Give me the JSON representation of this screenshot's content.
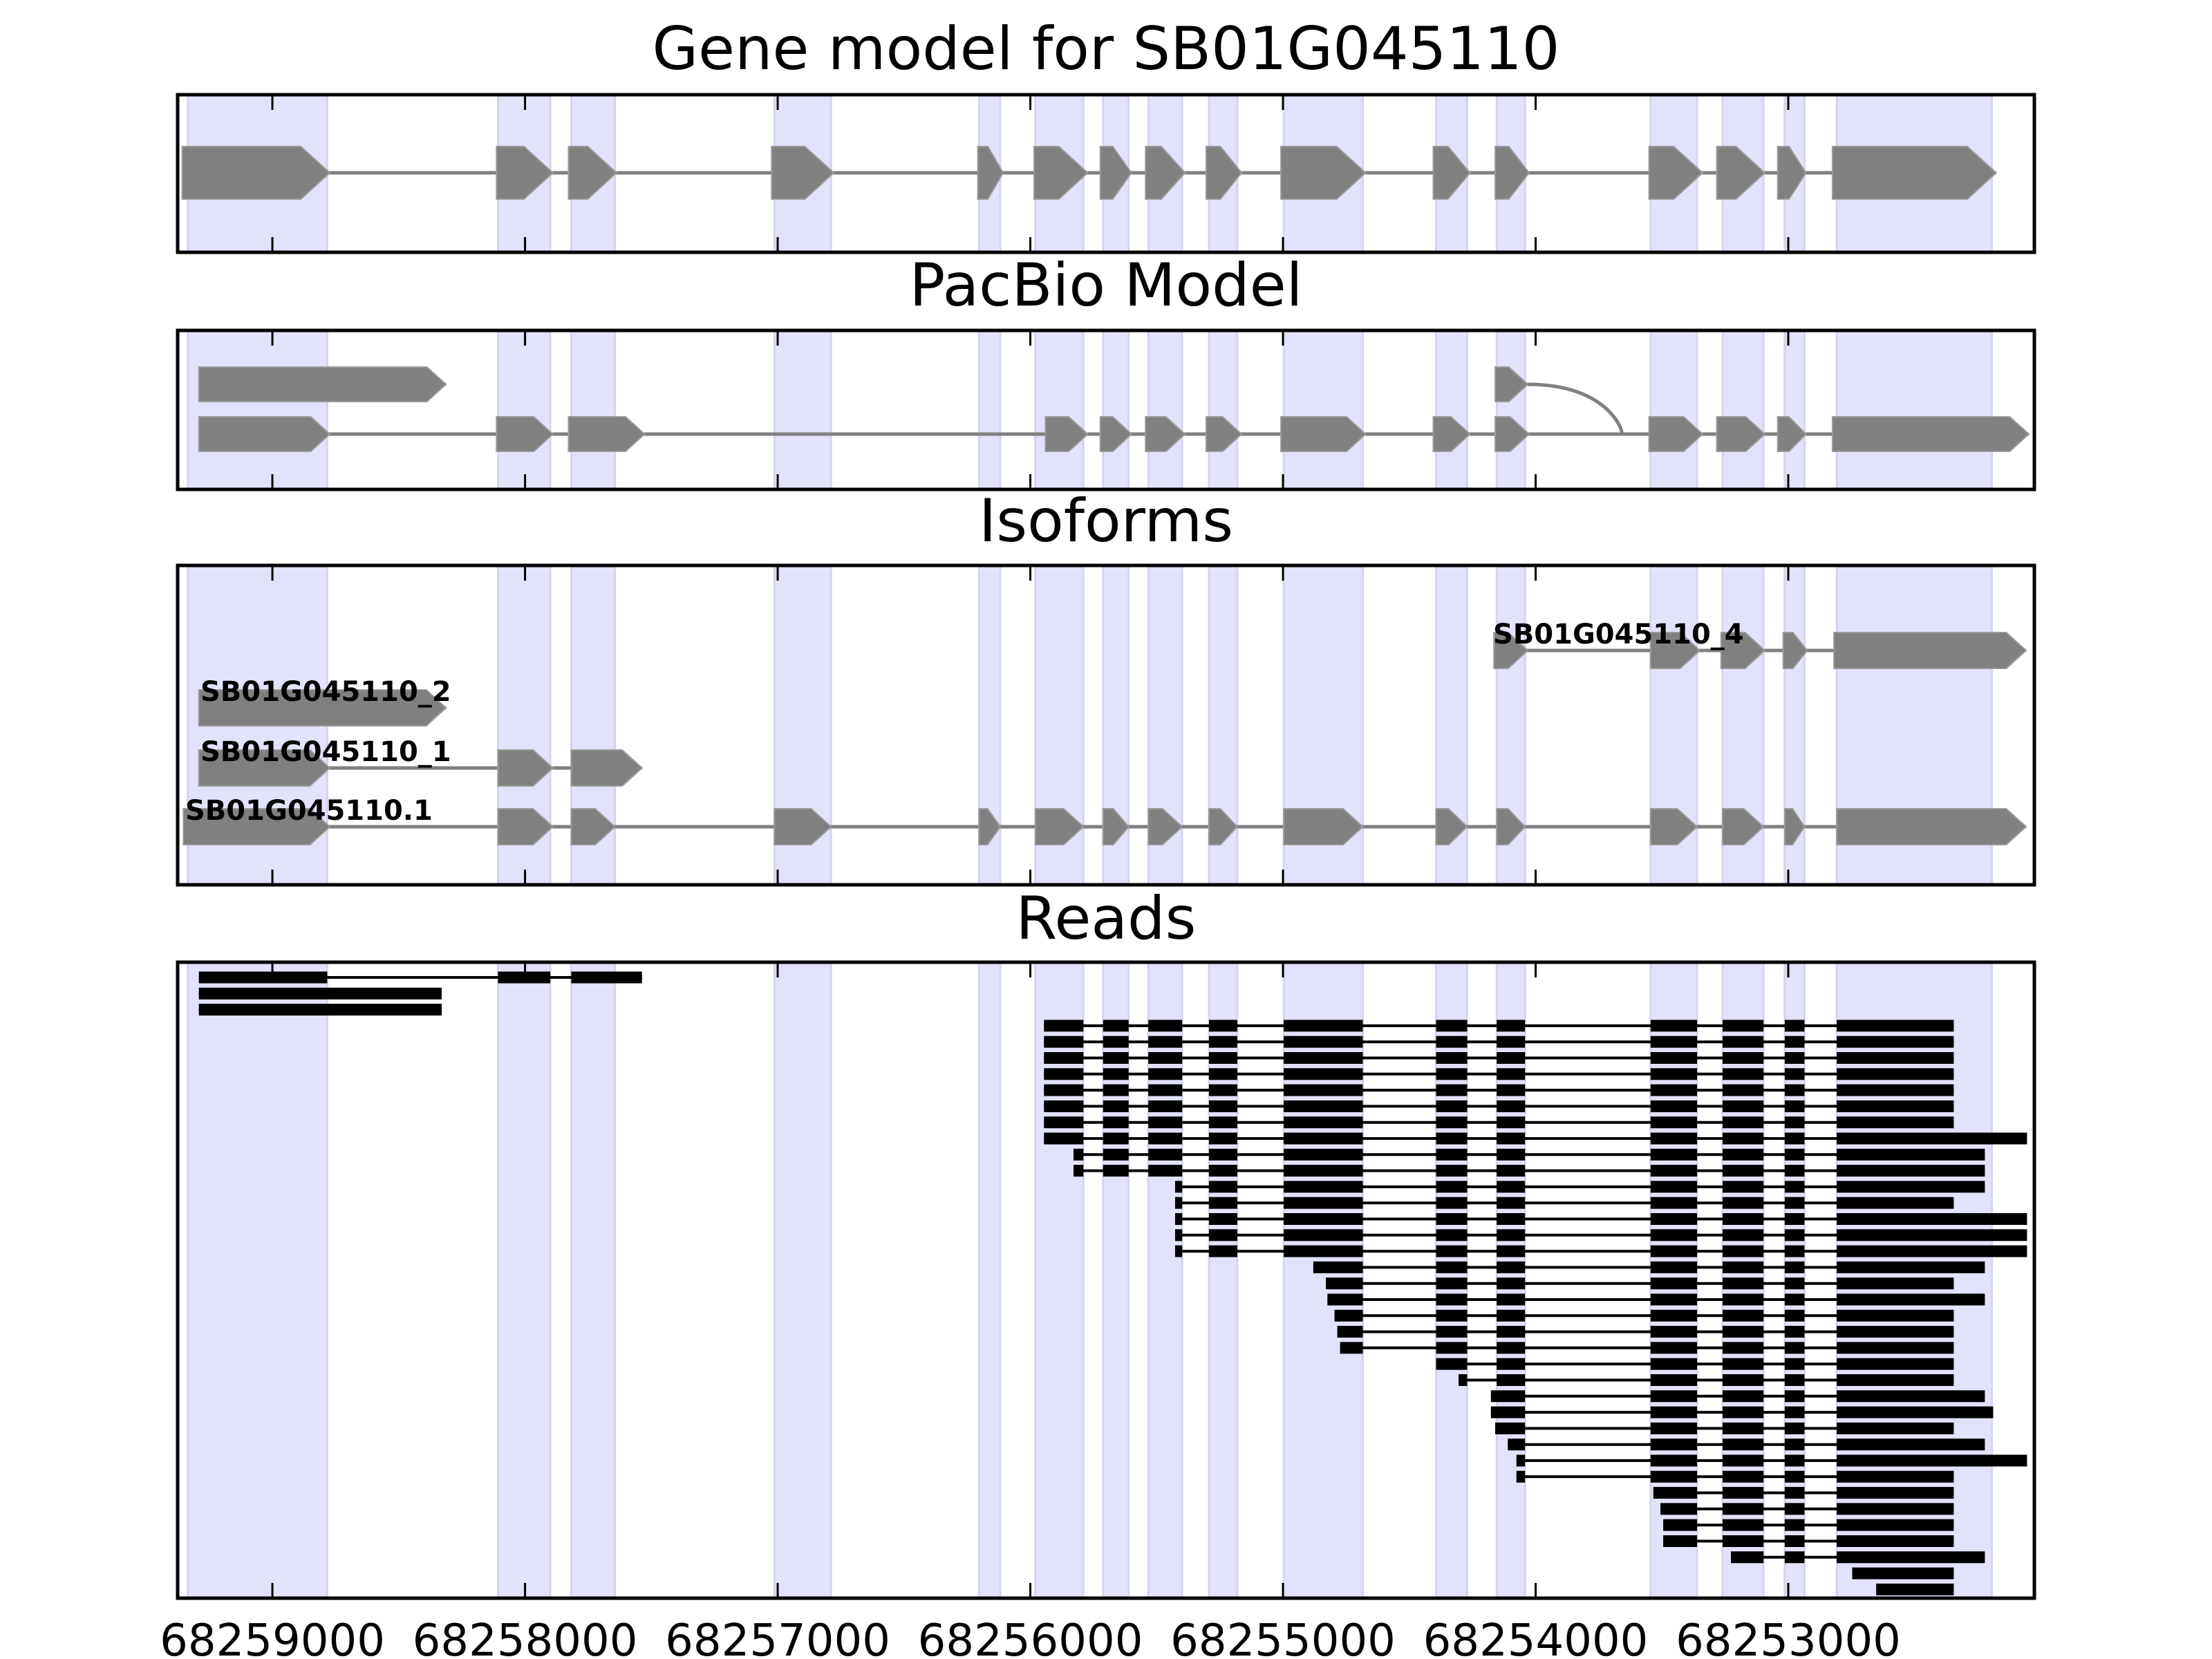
{
  "chart_data": {
    "type": "gene-track",
    "title": "Gene model for SB01G045110",
    "panels": [
      "Gene model for SB01G045110",
      "PacBio Model",
      "Isoforms",
      "Reads"
    ],
    "xlabel": "",
    "x_ticks": [
      68259000,
      68258000,
      68257000,
      68256000,
      68255000,
      68254000,
      68253000
    ],
    "x_tick_labels": [
      "68259000",
      "68258000",
      "68257000",
      "68256000",
      "68255000",
      "68254000",
      "68253000"
    ],
    "xlim": [
      68259375,
      68252026
    ],
    "x_reversed": true,
    "colors": {
      "shade": "#e2e2fa",
      "shade_edge": "#d4d4ee",
      "feature": "#808080",
      "read": "#000000"
    },
    "exon_regions": [
      [
        68259335,
        68258783
      ],
      [
        68258107,
        68257900
      ],
      [
        68257817,
        68257644
      ],
      [
        68257013,
        68256789
      ],
      [
        68256203,
        68256119
      ],
      [
        68255980,
        68255790
      ],
      [
        68255712,
        68255611
      ],
      [
        68255533,
        68255399
      ],
      [
        68255293,
        68255181
      ],
      [
        68254997,
        68254684
      ],
      [
        68254394,
        68254271
      ],
      [
        68254154,
        68254042
      ],
      [
        68253545,
        68253361
      ],
      [
        68253260,
        68253098
      ],
      [
        68253014,
        68252936
      ],
      [
        68252808,
        68252194
      ]
    ],
    "gene_model": [
      [
        68259357,
        68258773
      ],
      [
        68258113,
        68257890
      ],
      [
        68257828,
        68257638
      ],
      [
        68257024,
        68256778
      ],
      [
        68256208,
        68256108
      ],
      [
        68255985,
        68255773
      ],
      [
        68255723,
        68255600
      ],
      [
        68255544,
        68255388
      ],
      [
        68255304,
        68255164
      ],
      [
        68255008,
        68254673
      ],
      [
        68254405,
        68254260
      ],
      [
        68254160,
        68254026
      ],
      [
        68253551,
        68253339
      ],
      [
        68253283,
        68253093
      ],
      [
        68253042,
        68252930
      ],
      [
        68252825,
        68252177
      ]
    ],
    "pacbio_model": [
      {
        "row": 0,
        "exons": [
          [
            68259291,
            68258313
          ]
        ]
      },
      {
        "row": 0,
        "exons": [
          [
            68254160,
            68254031
          ]
        ],
        "joins_row": 1,
        "joins_at": 68253551
      },
      {
        "row": 1,
        "exons": [
          [
            68259291,
            68258773
          ],
          [
            68258113,
            68257890
          ],
          [
            68257828,
            68257527
          ],
          [
            68255940,
            68255773
          ],
          [
            68255723,
            68255600
          ],
          [
            68255544,
            68255388
          ],
          [
            68255304,
            68255164
          ],
          [
            68255008,
            68254673
          ],
          [
            68254405,
            68254260
          ],
          [
            68254160,
            68254026
          ],
          [
            68253551,
            68253339
          ],
          [
            68253283,
            68253093
          ],
          [
            68253042,
            68252930
          ],
          [
            68252825,
            68252048
          ]
        ]
      }
    ],
    "isoforms": [
      {
        "name": "SB01G045110_4",
        "exons": [
          [
            68254165,
            68254031
          ],
          [
            68253545,
            68253350
          ],
          [
            68253266,
            68253093
          ],
          [
            68253020,
            68252925
          ],
          [
            68252819,
            68252059
          ]
        ]
      },
      {
        "name": "SB01G045110_2",
        "exons": [
          [
            68259291,
            68258313
          ]
        ]
      },
      {
        "name": "SB01G045110_1",
        "exons": [
          [
            68259291,
            68258773
          ],
          [
            68258107,
            68257890
          ],
          [
            68257817,
            68257537
          ]
        ]
      },
      {
        "name": "SB01G045110.1",
        "exons": [
          [
            68259352,
            68258773
          ],
          [
            68258107,
            68257890
          ],
          [
            68257817,
            68257644
          ],
          [
            68257013,
            68256789
          ],
          [
            68256203,
            68256119
          ],
          [
            68255980,
            68255790
          ],
          [
            68255712,
            68255611
          ],
          [
            68255533,
            68255399
          ],
          [
            68255293,
            68255181
          ],
          [
            68254997,
            68254684
          ],
          [
            68254394,
            68254271
          ],
          [
            68254154,
            68254042
          ],
          [
            68253545,
            68253361
          ],
          [
            68253260,
            68253098
          ],
          [
            68253014,
            68252936
          ],
          [
            68252808,
            68252059
          ]
        ]
      }
    ],
    "reads": [
      {
        "start": 68259291,
        "end": 68257537,
        "exons": [
          0,
          2
        ]
      },
      {
        "start": 68259291,
        "end": 68258330,
        "exons": [
          0,
          0
        ]
      },
      {
        "start": 68259291,
        "end": 68258330,
        "exons": [
          0,
          0
        ]
      },
      {
        "start": 68255946,
        "end": 68252345,
        "exons": [
          5,
          15
        ]
      },
      {
        "start": 68255946,
        "end": 68252345,
        "exons": [
          5,
          15
        ]
      },
      {
        "start": 68255946,
        "end": 68252345,
        "exons": [
          5,
          15
        ]
      },
      {
        "start": 68255946,
        "end": 68252345,
        "exons": [
          5,
          15
        ]
      },
      {
        "start": 68255946,
        "end": 68252345,
        "exons": [
          5,
          15
        ]
      },
      {
        "start": 68255946,
        "end": 68252345,
        "exons": [
          5,
          15
        ]
      },
      {
        "start": 68255946,
        "end": 68252345,
        "exons": [
          5,
          15
        ]
      },
      {
        "start": 68255946,
        "end": 68252055,
        "exons": [
          5,
          15
        ]
      },
      {
        "start": 68255829,
        "end": 68252222,
        "exons": [
          5,
          15
        ]
      },
      {
        "start": 68255829,
        "end": 68252222,
        "exons": [
          5,
          15
        ]
      },
      {
        "start": 68255427,
        "end": 68252222,
        "exons": [
          7,
          15
        ]
      },
      {
        "start": 68255427,
        "end": 68252345,
        "exons": [
          7,
          15
        ]
      },
      {
        "start": 68255427,
        "end": 68252055,
        "exons": [
          7,
          15
        ]
      },
      {
        "start": 68255427,
        "end": 68252055,
        "exons": [
          7,
          15
        ]
      },
      {
        "start": 68255427,
        "end": 68252055,
        "exons": [
          7,
          15
        ]
      },
      {
        "start": 68254880,
        "end": 68252222,
        "exons": [
          9,
          15
        ]
      },
      {
        "start": 68254830,
        "end": 68252345,
        "exons": [
          9,
          15
        ]
      },
      {
        "start": 68254824,
        "end": 68252222,
        "exons": [
          9,
          15
        ]
      },
      {
        "start": 68254796,
        "end": 68252345,
        "exons": [
          9,
          15
        ]
      },
      {
        "start": 68254785,
        "end": 68252345,
        "exons": [
          9,
          15
        ]
      },
      {
        "start": 68254774,
        "end": 68252345,
        "exons": [
          9,
          15
        ]
      },
      {
        "start": 68254394,
        "end": 68252345,
        "exons": [
          10,
          15
        ]
      },
      {
        "start": 68254305,
        "end": 68252345,
        "exons": [
          10,
          15
        ]
      },
      {
        "start": 68254177,
        "end": 68252222,
        "exons": [
          11,
          15
        ]
      },
      {
        "start": 68254177,
        "end": 68252189,
        "exons": [
          11,
          15
        ]
      },
      {
        "start": 68254160,
        "end": 68252345,
        "exons": [
          11,
          15
        ]
      },
      {
        "start": 68254110,
        "end": 68252222,
        "exons": [
          11,
          15
        ]
      },
      {
        "start": 68254076,
        "end": 68252055,
        "exons": [
          11,
          15
        ]
      },
      {
        "start": 68254076,
        "end": 68252345,
        "exons": [
          11,
          15
        ]
      },
      {
        "start": 68253534,
        "end": 68252345,
        "exons": [
          12,
          15
        ]
      },
      {
        "start": 68253506,
        "end": 68252345,
        "exons": [
          12,
          15
        ]
      },
      {
        "start": 68253495,
        "end": 68252345,
        "exons": [
          12,
          15
        ]
      },
      {
        "start": 68253495,
        "end": 68252345,
        "exons": [
          12,
          15
        ]
      },
      {
        "start": 68253227,
        "end": 68252222,
        "exons": [
          13,
          15
        ]
      },
      {
        "start": 68252747,
        "end": 68252345,
        "exons": [
          15,
          15
        ]
      },
      {
        "start": 68252652,
        "end": 68252345,
        "exons": [
          15,
          15
        ]
      }
    ]
  }
}
